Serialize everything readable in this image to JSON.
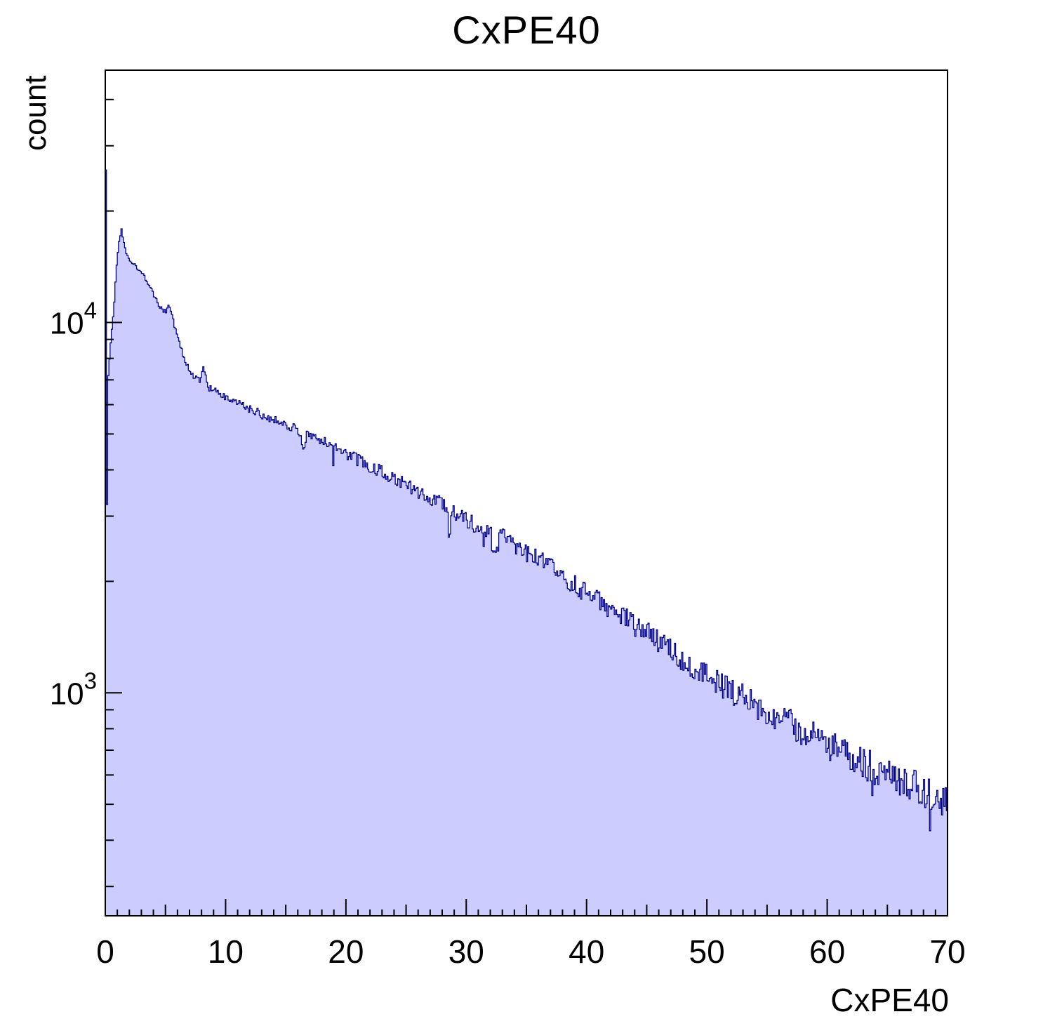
{
  "title": "CxPE40",
  "axes": {
    "x_label": "CxPE40",
    "y_label": "count",
    "x_major_ticks": [
      {
        "label": "0",
        "value": 0
      },
      {
        "label": "10",
        "value": 10
      },
      {
        "label": "20",
        "value": 20
      },
      {
        "label": "30",
        "value": 30
      },
      {
        "label": "40",
        "value": 40
      },
      {
        "label": "50",
        "value": 50
      },
      {
        "label": "60",
        "value": 60
      },
      {
        "label": "70",
        "value": 70
      }
    ],
    "y_decades": [
      {
        "mantissa": "10",
        "exponent": "3",
        "value": 1000
      },
      {
        "mantissa": "10",
        "exponent": "4",
        "value": 10000
      }
    ]
  },
  "chart_data": {
    "type": "bar",
    "subtype": "step-histogram",
    "title": "CxPE40",
    "xlabel": "CxPE40",
    "ylabel": "count",
    "xlim": [
      0,
      70
    ],
    "ylim": [
      250,
      48000
    ],
    "yscale": "log",
    "grid": false,
    "legend": false,
    "bin_width": 0.1,
    "fill_color": "#ccccff",
    "line_color": "#00008c",
    "frame_color": "#000000",
    "envelope": [
      [
        0.05,
        26000
      ],
      [
        0.15,
        3200
      ],
      [
        0.25,
        7200
      ],
      [
        0.45,
        8800
      ],
      [
        0.7,
        10800
      ],
      [
        0.9,
        13600
      ],
      [
        1.1,
        16300
      ],
      [
        1.35,
        17800
      ],
      [
        1.6,
        16300
      ],
      [
        1.8,
        15300
      ],
      [
        2.1,
        14700
      ],
      [
        2.5,
        14200
      ],
      [
        3,
        13800
      ],
      [
        3.4,
        13100
      ],
      [
        3.8,
        12300
      ],
      [
        4.2,
        11500
      ],
      [
        4.6,
        10900
      ],
      [
        5,
        10700
      ],
      [
        5.3,
        11200
      ],
      [
        5.6,
        10300
      ],
      [
        5.9,
        9400
      ],
      [
        6.2,
        8700
      ],
      [
        6.6,
        7900
      ],
      [
        7,
        7400
      ],
      [
        7.5,
        7100
      ],
      [
        7.9,
        6950
      ],
      [
        8.2,
        7600
      ],
      [
        8.5,
        6700
      ],
      [
        9,
        6550
      ],
      [
        9.5,
        6400
      ],
      [
        10,
        6250
      ],
      [
        11,
        6050
      ],
      [
        12,
        5850
      ],
      [
        13,
        5650
      ],
      [
        14,
        5480
      ],
      [
        15,
        5320
      ],
      [
        16,
        5160
      ],
      [
        16.5,
        4550
      ],
      [
        16.8,
        5020
      ],
      [
        18,
        4800
      ],
      [
        19,
        4600
      ],
      [
        20,
        4420
      ],
      [
        21,
        4260
      ],
      [
        22,
        4100
      ],
      [
        23,
        3950
      ],
      [
        24,
        3800
      ],
      [
        25,
        3650
      ],
      [
        26,
        3500
      ],
      [
        27,
        3360
      ],
      [
        28,
        3230
      ],
      [
        29,
        3080
      ],
      [
        30,
        2930
      ],
      [
        31,
        2820
      ],
      [
        32,
        2740
      ],
      [
        32.4,
        2250
      ],
      [
        32.8,
        2680
      ],
      [
        33.4,
        2600
      ],
      [
        34,
        2530
      ],
      [
        35,
        2400
      ],
      [
        36,
        2290
      ],
      [
        37,
        2180
      ],
      [
        38,
        2070
      ],
      [
        39,
        1960
      ],
      [
        40,
        1860
      ],
      [
        41,
        1770
      ],
      [
        42,
        1690
      ],
      [
        43,
        1610
      ],
      [
        44,
        1530
      ],
      [
        45,
        1450
      ],
      [
        46,
        1380
      ],
      [
        47,
        1310
      ],
      [
        48,
        1240
      ],
      [
        49,
        1180
      ],
      [
        50,
        1120
      ],
      [
        51,
        1070
      ],
      [
        52,
        1020
      ],
      [
        53,
        975
      ],
      [
        54,
        935
      ],
      [
        55,
        895
      ],
      [
        56,
        860
      ],
      [
        57,
        825
      ],
      [
        58,
        790
      ],
      [
        59,
        760
      ],
      [
        60,
        730
      ],
      [
        61,
        700
      ],
      [
        62,
        675
      ],
      [
        63,
        650
      ],
      [
        64,
        628
      ],
      [
        65,
        606
      ],
      [
        66,
        585
      ],
      [
        67,
        565
      ],
      [
        68,
        545
      ],
      [
        69,
        527
      ],
      [
        70,
        510
      ]
    ],
    "noise": {
      "seed": 1337,
      "base": 0.012,
      "slope": 0.1,
      "spike_prob": 0.01,
      "spike_depth": 0.18
    },
    "notable_features": "sharp first-bin spike ~2.6e4; dip then local peak ~1.8e4 near x=1.4; secondary bump near x=5; quasi-exponential decay to ~5e2 at x=70 with growing bin-to-bin fluctuations"
  }
}
